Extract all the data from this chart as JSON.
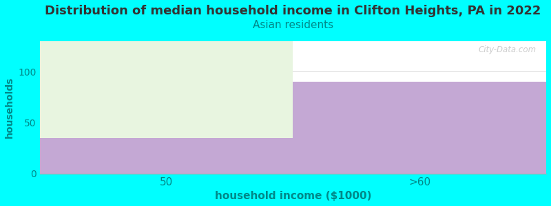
{
  "title": "Distribution of median household income in Clifton Heights, PA in 2022",
  "subtitle": "Asian residents",
  "xlabel": "household income ($1000)",
  "ylabel": "households",
  "background_color": "#00FFFF",
  "plot_bg_color": "#FFFFFF",
  "categories": [
    "50",
    ">60"
  ],
  "bar_purple_values": [
    35,
    90
  ],
  "bar_green_values": [
    100,
    0
  ],
  "bar_purple_color": "#C4A8D4",
  "bar_green_color": "#E8F5E0",
  "ylim": [
    0,
    130
  ],
  "yticks": [
    0,
    50,
    100
  ],
  "title_fontsize": 13,
  "subtitle_fontsize": 11,
  "subtitle_color": "#008888",
  "axis_label_color": "#008888",
  "tick_color": "#008888",
  "watermark": "City-Data.com"
}
